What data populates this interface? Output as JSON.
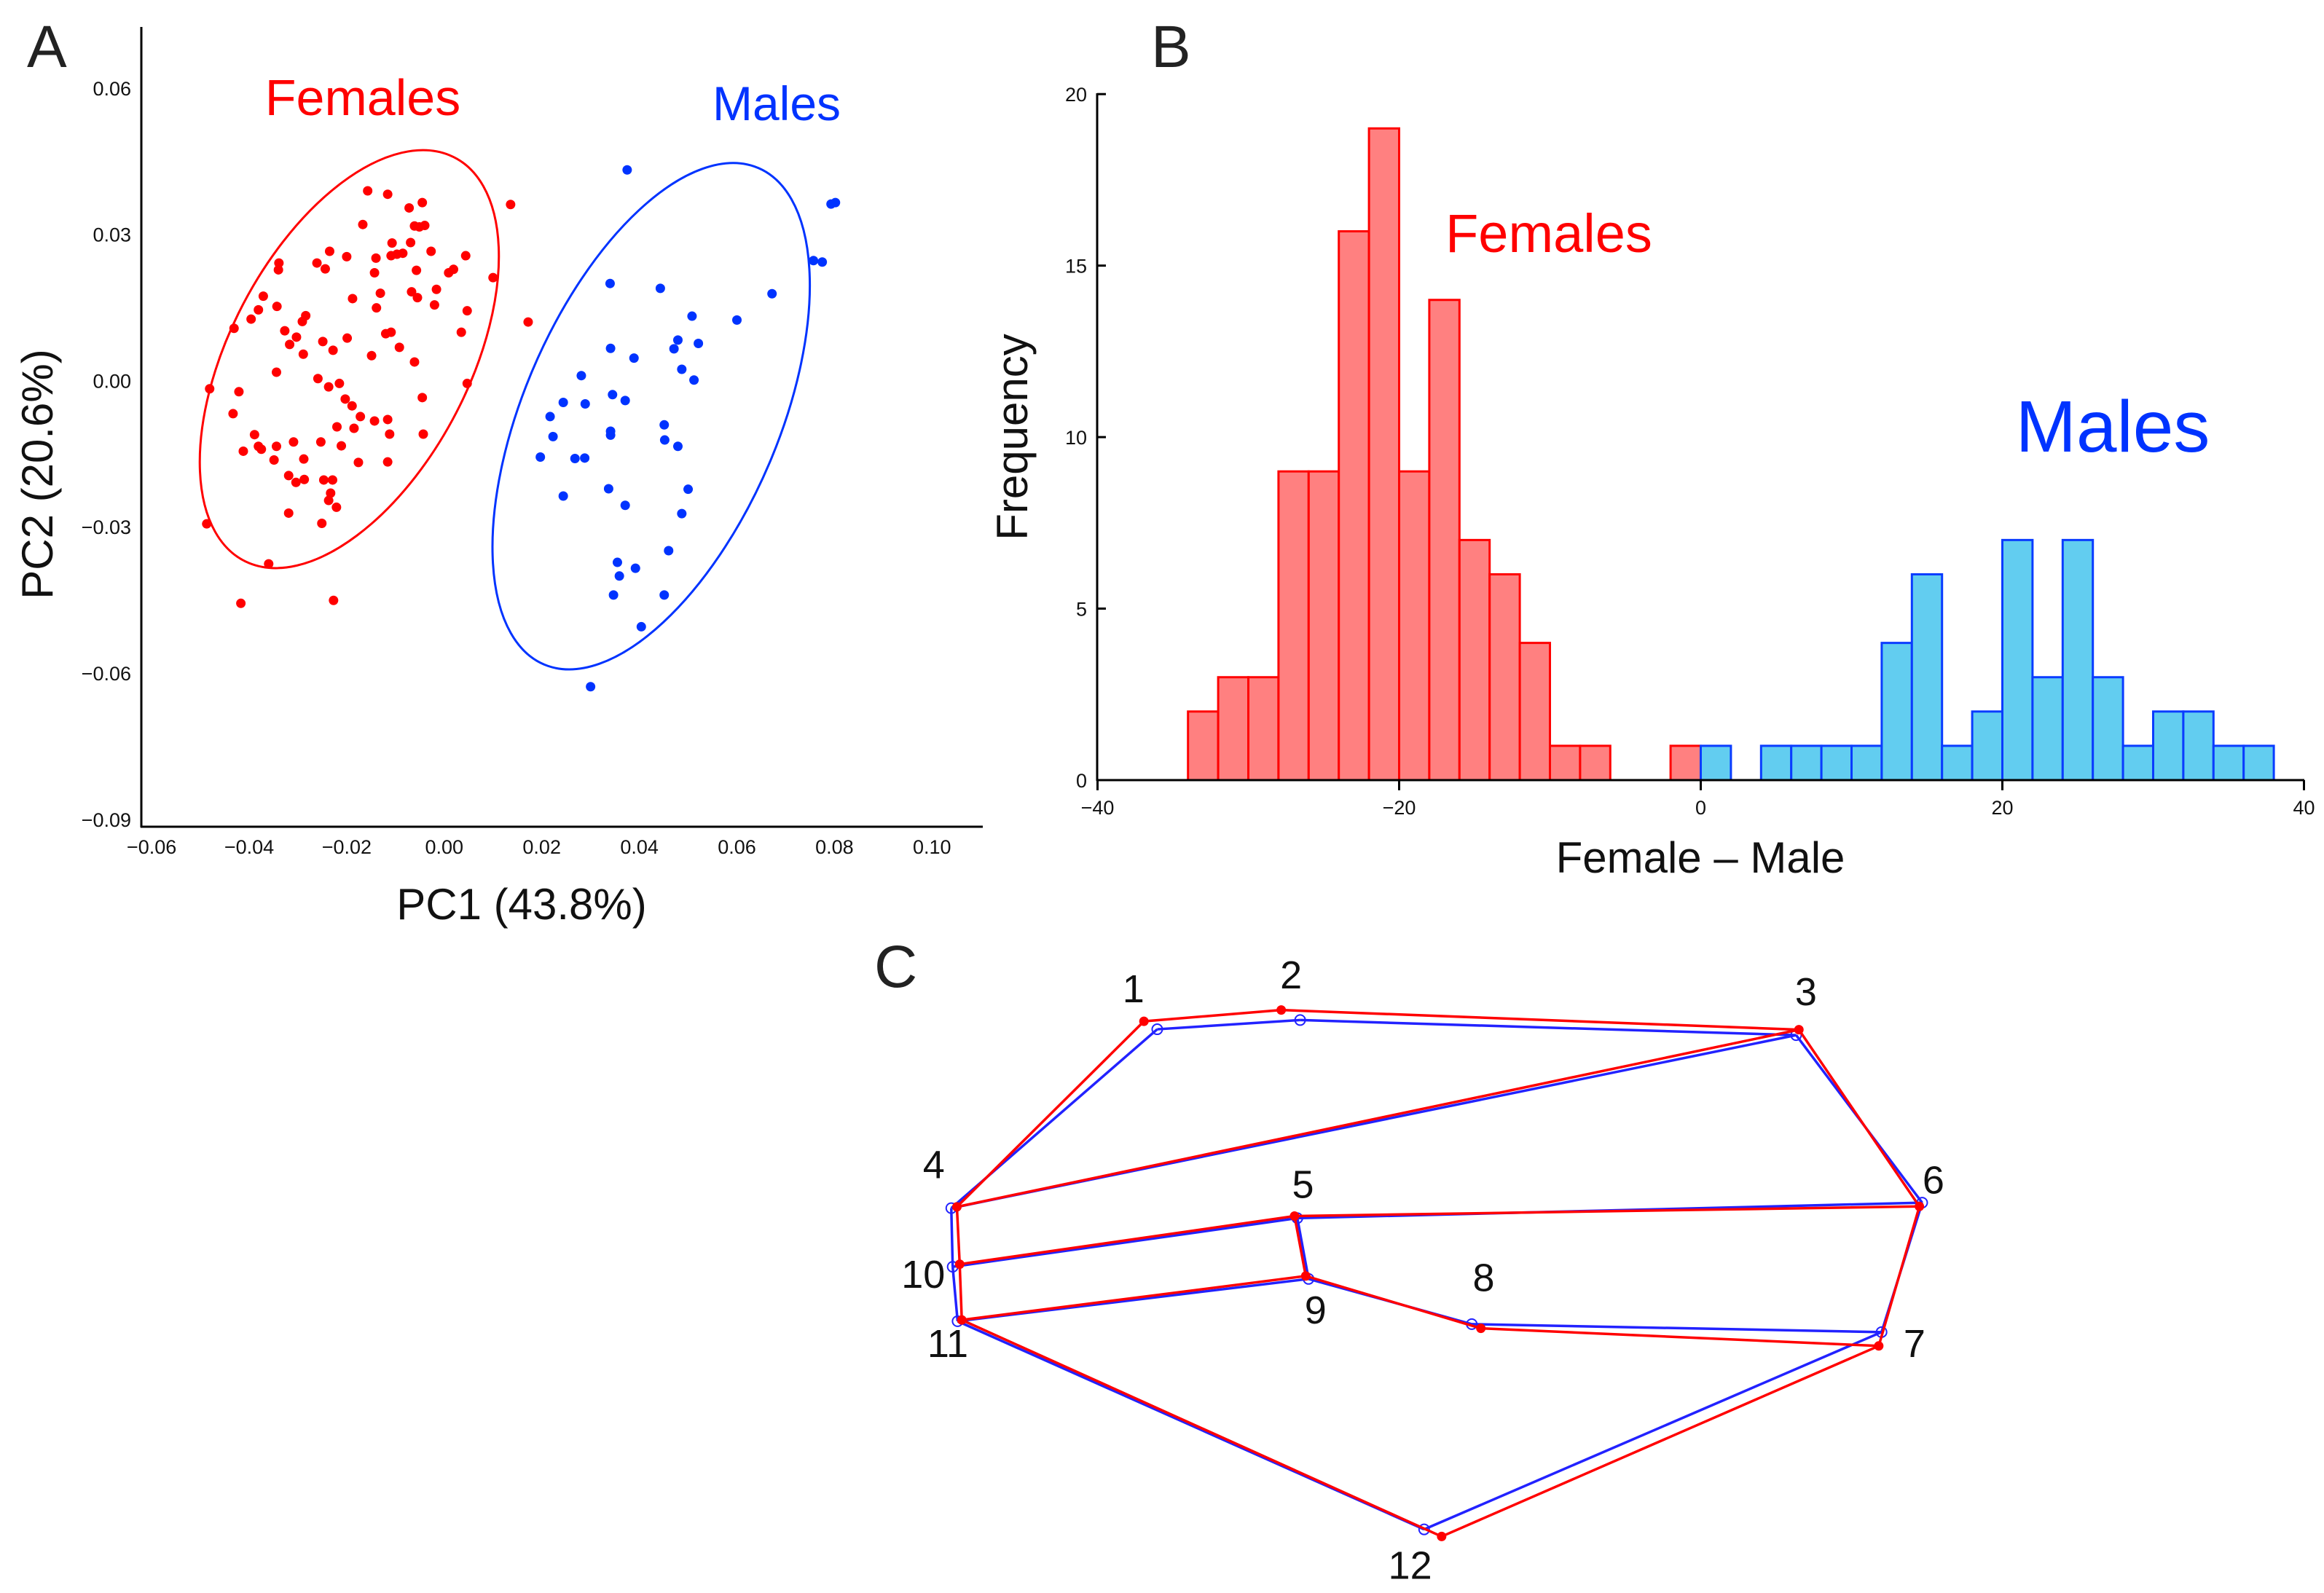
{
  "panel_labels": {
    "a": "A",
    "b": "B",
    "c": "C"
  },
  "chart_data": [
    {
      "type": "scatter",
      "panel": "A",
      "xlabel": "PC1 (43.8%)",
      "ylabel": "PC2 (20.6%)",
      "xlim": [
        -0.06,
        0.11
      ],
      "ylim": [
        -0.09,
        0.07
      ],
      "xticks": [
        -0.06,
        -0.04,
        -0.02,
        0.0,
        0.02,
        0.04,
        0.06,
        0.08,
        0.1
      ],
      "xtick_labels": [
        "−0.06",
        "−0.04",
        "−0.02",
        "0.00",
        "0.02",
        "0.04",
        "0.06",
        "0.08",
        "0.10"
      ],
      "yticks": [
        0.06,
        0.03,
        0.0,
        -0.03,
        -0.06,
        -0.09
      ],
      "ytick_labels": [
        "0.06",
        "0.03",
        "0.00",
        "−0.03",
        "−0.06",
        "−0.09"
      ],
      "grid": false,
      "series": [
        {
          "name": "Females",
          "color": "#ff0000",
          "ellipse": true,
          "points": [
            [
              -0.0157,
              0.0389
            ],
            [
              -0.0116,
              0.0382
            ],
            [
              -0.0072,
              0.0354
            ],
            [
              -0.0045,
              0.0365
            ],
            [
              -0.0167,
              0.032
            ],
            [
              -0.0061,
              0.0317
            ],
            [
              -0.004,
              0.0318
            ],
            [
              -0.0051,
              0.0315
            ],
            [
              -0.0107,
              0.0282
            ],
            [
              -0.0069,
              0.0283
            ],
            [
              -0.0027,
              0.0265
            ],
            [
              -0.0235,
              0.0265
            ],
            [
              -0.02,
              0.0254
            ],
            [
              -0.014,
              0.0251
            ],
            [
              -0.0109,
              0.0256
            ],
            [
              -0.0097,
              0.0259
            ],
            [
              -0.0085,
              0.0261
            ],
            [
              0.0044,
              0.0256
            ],
            [
              -0.0261,
              0.0241
            ],
            [
              -0.0339,
              0.0241
            ],
            [
              -0.034,
              0.0227
            ],
            [
              -0.0244,
              0.0229
            ],
            [
              -0.0143,
              0.0221
            ],
            [
              -0.0057,
              0.0226
            ],
            [
              0.0019,
              0.0228
            ],
            [
              0.0009,
              0.0221
            ],
            [
              0.01,
              0.0211
            ],
            [
              -0.0131,
              0.0179
            ],
            [
              -0.0067,
              0.0182
            ],
            [
              -0.0055,
              0.017
            ],
            [
              -0.0016,
              0.0187
            ],
            [
              -0.0188,
              0.0168
            ],
            [
              -0.0371,
              0.0173
            ],
            [
              -0.0381,
              0.0145
            ],
            [
              -0.0343,
              0.0152
            ],
            [
              -0.0396,
              0.0126
            ],
            [
              -0.0139,
              0.0149
            ],
            [
              -0.002,
              0.0155
            ],
            [
              0.0047,
              0.0143
            ],
            [
              -0.0284,
              0.0133
            ],
            [
              -0.0291,
              0.0121
            ],
            [
              -0.0431,
              0.0107
            ],
            [
              -0.0327,
              0.0102
            ],
            [
              -0.012,
              0.0096
            ],
            [
              -0.0109,
              0.0099
            ],
            [
              0.0035,
              0.0099
            ],
            [
              -0.0303,
              0.0089
            ],
            [
              -0.0317,
              0.0074
            ],
            [
              -0.0249,
              0.008
            ],
            [
              -0.0199,
              0.0087
            ],
            [
              -0.0092,
              0.0068
            ],
            [
              -0.0228,
              0.0062
            ],
            [
              -0.0289,
              0.0054
            ],
            [
              -0.0149,
              0.0051
            ],
            [
              -0.0061,
              0.0038
            ],
            [
              -0.0344,
              0.0017
            ],
            [
              -0.0259,
              0.0004
            ],
            [
              -0.0215,
              -0.0006
            ],
            [
              -0.0237,
              -0.0013
            ],
            [
              0.0047,
              -0.0006
            ],
            [
              -0.0481,
              -0.0017
            ],
            [
              -0.0421,
              -0.0023
            ],
            [
              -0.0203,
              -0.0038
            ],
            [
              -0.0045,
              -0.0035
            ],
            [
              -0.0189,
              -0.0052
            ],
            [
              -0.0433,
              -0.0068
            ],
            [
              -0.0172,
              -0.0074
            ],
            [
              -0.0143,
              -0.0083
            ],
            [
              -0.0116,
              -0.008
            ],
            [
              -0.022,
              -0.0095
            ],
            [
              -0.0185,
              -0.0098
            ],
            [
              -0.0389,
              -0.0111
            ],
            [
              -0.0112,
              -0.011
            ],
            [
              -0.0043,
              -0.011
            ],
            [
              -0.0309,
              -0.0126
            ],
            [
              -0.0253,
              -0.0126
            ],
            [
              -0.0381,
              -0.0135
            ],
            [
              -0.0344,
              -0.0135
            ],
            [
              -0.0375,
              -0.0141
            ],
            [
              -0.0412,
              -0.0145
            ],
            [
              -0.0211,
              -0.0134
            ],
            [
              -0.0288,
              -0.0161
            ],
            [
              -0.0349,
              -0.0163
            ],
            [
              -0.0176,
              -0.0168
            ],
            [
              -0.0116,
              -0.0167
            ],
            [
              -0.0319,
              -0.0195
            ],
            [
              -0.0287,
              -0.0203
            ],
            [
              -0.0247,
              -0.0204
            ],
            [
              -0.0229,
              -0.0204
            ],
            [
              -0.0304,
              -0.0209
            ],
            [
              -0.0233,
              -0.0231
            ],
            [
              -0.0237,
              -0.0246
            ],
            [
              -0.0221,
              -0.026
            ],
            [
              -0.0319,
              -0.0272
            ],
            [
              -0.0251,
              -0.0293
            ],
            [
              -0.0487,
              -0.0294
            ],
            [
              -0.036,
              -0.0376
            ],
            [
              -0.0417,
              -0.0457
            ],
            [
              -0.0227,
              -0.0451
            ],
            [
              0.0136,
              0.0361
            ],
            [
              0.0172,
              0.012
            ]
          ]
        },
        {
          "name": "Males",
          "color": "#0033ff",
          "ellipse": true,
          "points": [
            [
              0.0375,
              0.0432
            ],
            [
              0.0793,
              0.0362
            ],
            [
              0.0802,
              0.0365
            ],
            [
              0.0757,
              0.0246
            ],
            [
              0.0775,
              0.0243
            ],
            [
              0.034,
              0.0199
            ],
            [
              0.0443,
              0.0189
            ],
            [
              0.0672,
              0.0178
            ],
            [
              0.0508,
              0.0132
            ],
            [
              0.06,
              0.0124
            ],
            [
              0.0479,
              0.0083
            ],
            [
              0.0521,
              0.0076
            ],
            [
              0.0471,
              0.0065
            ],
            [
              0.0341,
              0.0066
            ],
            [
              0.0389,
              0.0046
            ],
            [
              0.0487,
              0.0023
            ],
            [
              0.0512,
              0.0001
            ],
            [
              0.0281,
              0.001
            ],
            [
              0.0345,
              -0.0029
            ],
            [
              0.0371,
              -0.0041
            ],
            [
              0.0244,
              -0.0045
            ],
            [
              0.0289,
              -0.0048
            ],
            [
              0.0217,
              -0.0074
            ],
            [
              0.0451,
              -0.0091
            ],
            [
              0.0341,
              -0.0104
            ],
            [
              0.0341,
              -0.0112
            ],
            [
              0.0223,
              -0.0115
            ],
            [
              0.0452,
              -0.0122
            ],
            [
              0.0479,
              -0.0135
            ],
            [
              0.0197,
              -0.0157
            ],
            [
              0.0268,
              -0.016
            ],
            [
              0.0288,
              -0.0159
            ],
            [
              0.05,
              -0.0223
            ],
            [
              0.0337,
              -0.0222
            ],
            [
              0.0244,
              -0.0237
            ],
            [
              0.0371,
              -0.0256
            ],
            [
              0.0487,
              -0.0273
            ],
            [
              0.046,
              -0.0349
            ],
            [
              0.0355,
              -0.0373
            ],
            [
              0.0392,
              -0.0385
            ],
            [
              0.0359,
              -0.0401
            ],
            [
              0.0347,
              -0.044
            ],
            [
              0.0451,
              -0.044
            ],
            [
              0.0404,
              -0.0505
            ],
            [
              0.03,
              -0.0628
            ]
          ]
        }
      ]
    },
    {
      "type": "bar",
      "subtype": "histogram",
      "panel": "B",
      "xlabel": "Female – Male",
      "ylabel": "Frequency",
      "xlim": [
        -40,
        40
      ],
      "ylim": [
        0,
        20
      ],
      "xticks": [
        -40,
        -20,
        0,
        20,
        40
      ],
      "xtick_labels": [
        "−40",
        "−20",
        "0",
        "20",
        "40"
      ],
      "yticks": [
        0,
        5,
        10,
        15,
        20
      ],
      "ytick_labels": [
        "0",
        "5",
        "10",
        "15",
        "20"
      ],
      "bin_width": 2,
      "series": [
        {
          "name": "Females",
          "fill": "#ff8080",
          "stroke": "#ff0000",
          "bin_starts": [
            -34,
            -32,
            -30,
            -28,
            -26,
            -24,
            -22,
            -20,
            -18,
            -16,
            -14,
            -12,
            -10,
            -8,
            -2
          ],
          "values": [
            2,
            3,
            3,
            9,
            9,
            16,
            19,
            9,
            14,
            7,
            6,
            4,
            1,
            1,
            1
          ]
        },
        {
          "name": "Males",
          "fill": "#62cdf0",
          "stroke": "#0a3cff",
          "bin_starts": [
            0,
            4,
            6,
            8,
            10,
            12,
            14,
            16,
            18,
            20,
            22,
            24,
            26,
            28,
            30,
            32,
            34,
            36
          ],
          "values": [
            1,
            1,
            1,
            1,
            1,
            4,
            6,
            1,
            2,
            7,
            3,
            7,
            3,
            1,
            2,
            2,
            1,
            1
          ]
        }
      ]
    }
  ],
  "panel_c": {
    "landmark_labels": [
      "1",
      "2",
      "3",
      "4",
      "5",
      "6",
      "7",
      "8",
      "9",
      "10",
      "11",
      "12"
    ],
    "female_color": "#ff0000",
    "male_color": "#2222ff"
  }
}
